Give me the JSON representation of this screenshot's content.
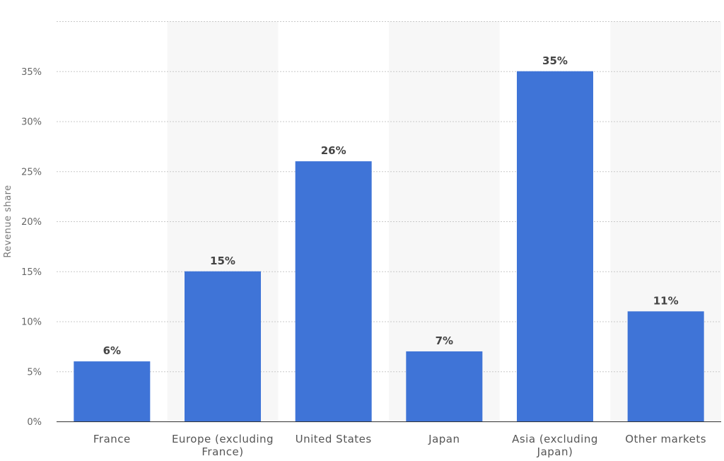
{
  "chart_data": {
    "type": "bar",
    "categories": [
      [
        "France"
      ],
      [
        "Europe (excluding",
        "France)"
      ],
      [
        "United States"
      ],
      [
        "Japan"
      ],
      [
        "Asia (excluding",
        "Japan)"
      ],
      [
        "Other markets"
      ]
    ],
    "values": [
      6,
      15,
      26,
      7,
      35,
      11
    ],
    "data_labels": [
      "6%",
      "15%",
      "26%",
      "7%",
      "35%",
      "11%"
    ],
    "ylabel": "Revenue share",
    "xlabel": "",
    "ylim": [
      0,
      40
    ],
    "yticks": [
      0,
      5,
      10,
      15,
      20,
      25,
      30,
      35
    ],
    "ytick_labels": [
      "0%",
      "5%",
      "10%",
      "15%",
      "20%",
      "25%",
      "30%",
      "35%"
    ],
    "grid": true,
    "bar_color": "#3f74d7",
    "alternate_band_color": "#f7f7f7"
  }
}
